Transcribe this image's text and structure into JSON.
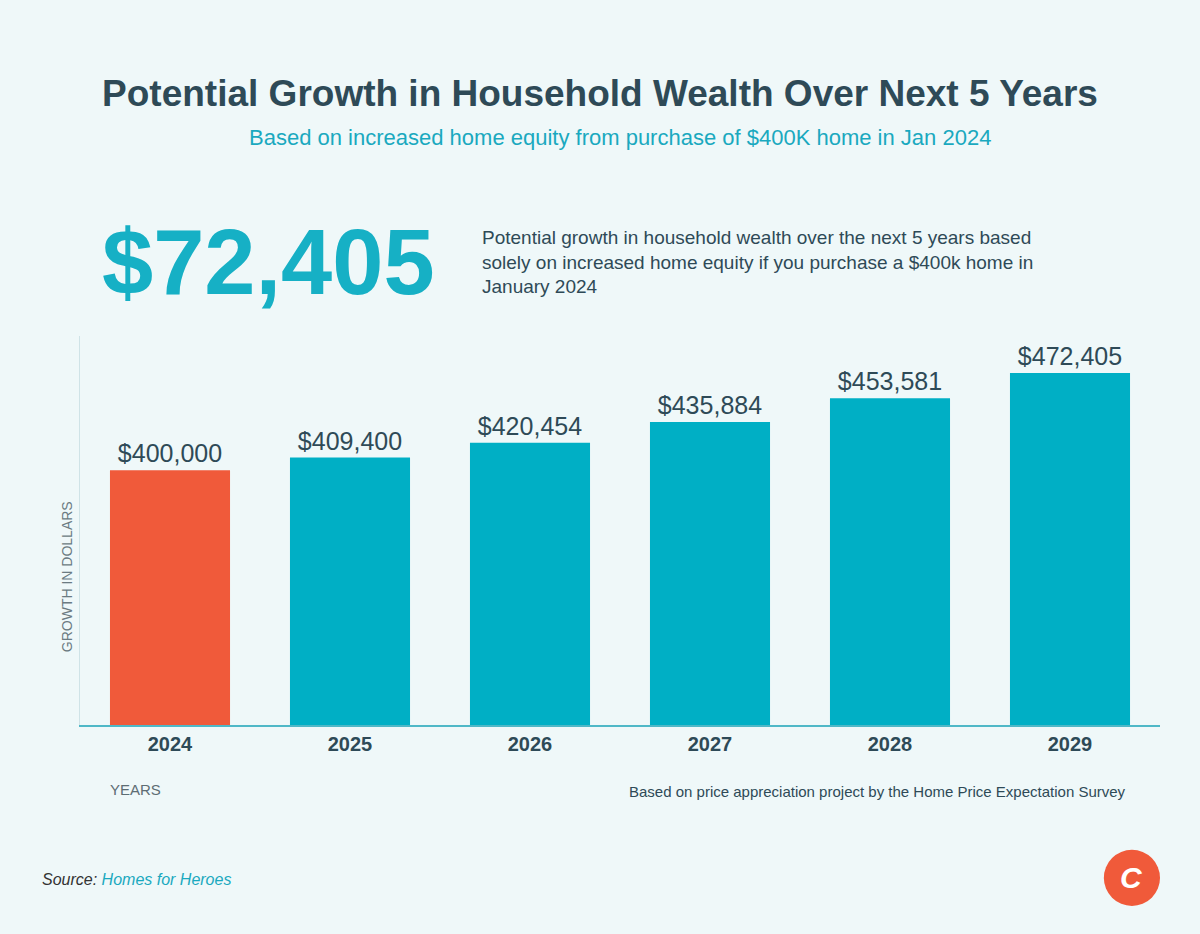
{
  "chart_data": {
    "type": "bar",
    "title": "Potential Growth in Household Wealth Over Next 5 Years",
    "subtitle": "Based on increased home equity from purchase of $400K home in Jan 2024",
    "highlight": "$72,405",
    "highlight_text": "Potential growth in household wealth over the next 5 years based solely on increased home equity if you purchase a $400k home in January 2024",
    "categories": [
      "2024",
      "2025",
      "2026",
      "2027",
      "2028",
      "2029"
    ],
    "values": [
      400000,
      409400,
      420454,
      435884,
      453581,
      472405
    ],
    "value_labels": [
      "$400,000",
      "$409,400",
      "$420,454",
      "$435,884",
      "$453,581",
      "$472,405"
    ],
    "colors": [
      "#f05a3a",
      "#00afc5",
      "#00afc5",
      "#00afc5",
      "#00afc5",
      "#00afc5"
    ],
    "data_labels": true,
    "x_label": "YEARS",
    "y_label": "GROWTH IN DOLLARS",
    "note": "Based on price appreciation project by the Home Price Expectation Survey",
    "source": {
      "label": "Source:",
      "name": "Homes for Heroes"
    },
    "logo": "C",
    "ylim": [
      210000,
      500000
    ],
    "grid": false,
    "tick_labels": "x"
  }
}
